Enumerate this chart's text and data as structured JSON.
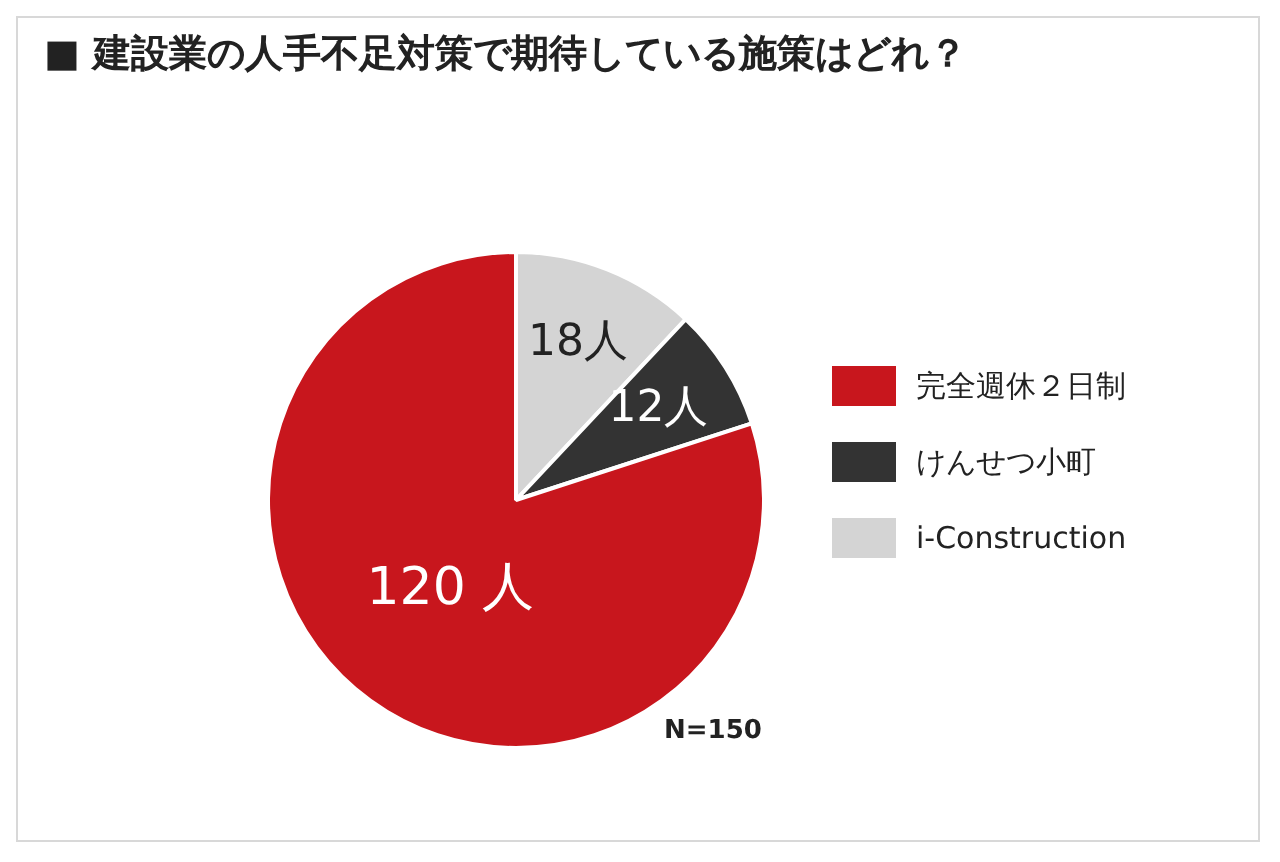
{
  "chart_data": {
    "type": "pie",
    "title": "■ 建設業の人手不足対策で期待している施策はどれ？",
    "categories": [
      "i-Construction",
      "けんせつ小町",
      "完全週休２日制"
    ],
    "values": [
      18,
      12,
      120
    ],
    "value_labels": [
      "18人",
      "12人",
      "120 人"
    ],
    "colors": [
      "#d4d4d4",
      "#333333",
      "#c8161d"
    ],
    "legend": "right",
    "annotations": [
      "N=150"
    ]
  }
}
